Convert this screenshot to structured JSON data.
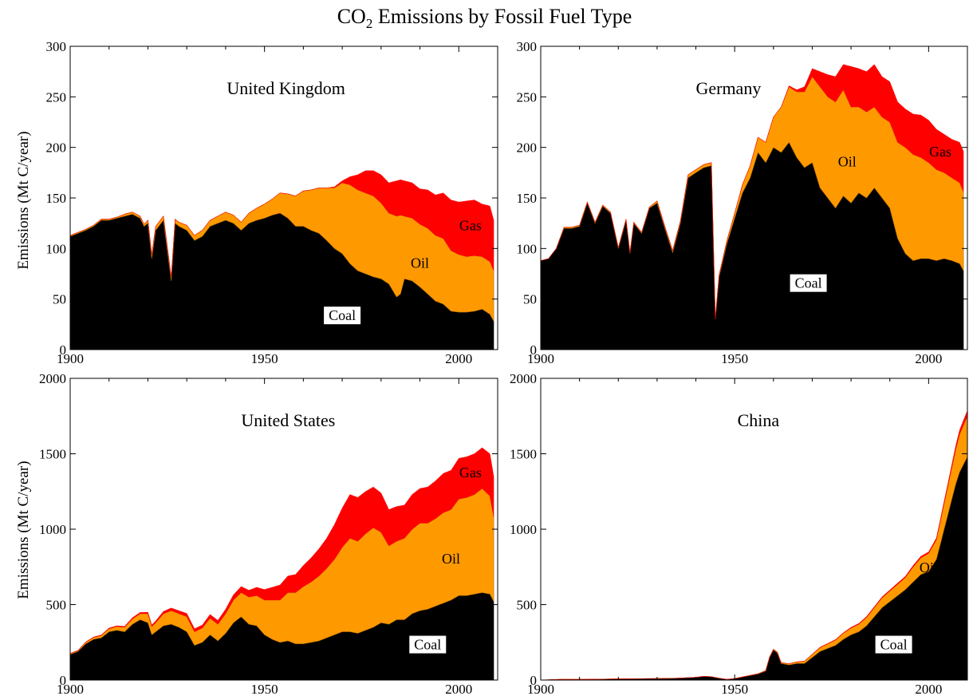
{
  "figure": {
    "title_prefix": "CO",
    "title_sub": "2",
    "title_suffix": " Emissions by Fossil Fuel Type",
    "ylabel": "Emissions (Mt C/year)"
  },
  "colors": {
    "coal": "#000000",
    "oil": "#FF9900",
    "gas": "#FF0000"
  },
  "chart_data": [
    {
      "type": "area",
      "stacked": true,
      "title": "United Kingdom",
      "ylabel": "Emissions (Mt C/year)",
      "xlim": [
        1900,
        2010
      ],
      "ylim": [
        0,
        300
      ],
      "xticks": [
        1900,
        1950,
        2000
      ],
      "yticks": [
        0,
        50,
        100,
        150,
        200,
        250,
        300
      ],
      "x": [
        1900,
        1902,
        1904,
        1906,
        1908,
        1910,
        1912,
        1914,
        1916,
        1918,
        1919,
        1920,
        1921,
        1922,
        1924,
        1926,
        1927,
        1928,
        1930,
        1932,
        1934,
        1936,
        1938,
        1940,
        1942,
        1944,
        1946,
        1948,
        1950,
        1952,
        1954,
        1956,
        1958,
        1960,
        1962,
        1964,
        1966,
        1968,
        1970,
        1972,
        1974,
        1976,
        1978,
        1980,
        1982,
        1984,
        1985,
        1986,
        1988,
        1990,
        1992,
        1994,
        1996,
        1998,
        2000,
        2002,
        2004,
        2006,
        2008,
        2009
      ],
      "series": [
        {
          "name": "Coal",
          "values": [
            112,
            115,
            118,
            122,
            128,
            128,
            130,
            132,
            134,
            130,
            122,
            125,
            90,
            118,
            128,
            68,
            125,
            122,
            118,
            108,
            112,
            122,
            125,
            128,
            125,
            118,
            125,
            128,
            130,
            133,
            135,
            130,
            122,
            122,
            118,
            115,
            108,
            100,
            95,
            85,
            78,
            75,
            72,
            70,
            65,
            52,
            55,
            70,
            68,
            62,
            55,
            48,
            45,
            38,
            37,
            37,
            38,
            40,
            35,
            28
          ]
        },
        {
          "name": "Oil",
          "values": [
            1,
            1,
            1,
            1,
            1,
            1,
            1,
            2,
            2,
            2,
            2,
            3,
            4,
            4,
            4,
            4,
            4,
            4,
            5,
            5,
            6,
            6,
            7,
            8,
            8,
            8,
            10,
            12,
            14,
            16,
            20,
            24,
            30,
            35,
            40,
            45,
            52,
            60,
            70,
            78,
            80,
            80,
            80,
            75,
            70,
            80,
            78,
            62,
            62,
            62,
            65,
            65,
            65,
            60,
            57,
            55,
            55,
            52,
            52,
            50
          ]
        },
        {
          "name": "Gas",
          "values": [
            0,
            0,
            0,
            0,
            0,
            0,
            0,
            0,
            0,
            0,
            0,
            0,
            0,
            0,
            0,
            0,
            0,
            0,
            0,
            0,
            0,
            0,
            0,
            0,
            0,
            0,
            0,
            0,
            0,
            0,
            0,
            0,
            0,
            0,
            0,
            0,
            0,
            1,
            2,
            8,
            15,
            22,
            25,
            28,
            30,
            35,
            35,
            35,
            35,
            35,
            38,
            40,
            45,
            50,
            52,
            55,
            55,
            52,
            55,
            50
          ]
        }
      ],
      "labels": [
        {
          "text": "Coal",
          "x": 1970,
          "y": 33,
          "boxed": true
        },
        {
          "text": "Oil",
          "x": 1990,
          "y": 85,
          "boxed": false
        },
        {
          "text": "Gas",
          "x": 2003,
          "y": 122,
          "boxed": false
        }
      ]
    },
    {
      "type": "area",
      "stacked": true,
      "title": "Germany",
      "xlim": [
        1900,
        2010
      ],
      "ylim": [
        0,
        300
      ],
      "xticks": [
        1900,
        1950,
        2000
      ],
      "yticks": [
        0,
        50,
        100,
        150,
        200,
        250,
        300
      ],
      "x": [
        1900,
        1902,
        1904,
        1906,
        1908,
        1910,
        1912,
        1914,
        1916,
        1918,
        1920,
        1922,
        1923,
        1924,
        1926,
        1928,
        1930,
        1932,
        1934,
        1936,
        1938,
        1940,
        1942,
        1944,
        1945,
        1946,
        1948,
        1950,
        1952,
        1954,
        1956,
        1958,
        1960,
        1962,
        1964,
        1966,
        1968,
        1970,
        1972,
        1974,
        1976,
        1978,
        1980,
        1982,
        1984,
        1986,
        1988,
        1990,
        1992,
        1994,
        1996,
        1998,
        2000,
        2002,
        2004,
        2006,
        2008,
        2009
      ],
      "series": [
        {
          "name": "Coal",
          "values": [
            88,
            90,
            100,
            120,
            120,
            122,
            145,
            125,
            142,
            135,
            100,
            128,
            95,
            125,
            115,
            140,
            145,
            120,
            96,
            125,
            170,
            175,
            180,
            182,
            30,
            72,
            105,
            130,
            155,
            170,
            195,
            185,
            200,
            195,
            205,
            190,
            180,
            185,
            160,
            150,
            140,
            152,
            145,
            155,
            150,
            160,
            150,
            140,
            110,
            95,
            88,
            90,
            90,
            88,
            90,
            88,
            85,
            78
          ]
        },
        {
          "name": "Oil",
          "values": [
            0,
            0,
            0,
            1,
            1,
            1,
            1,
            1,
            1,
            1,
            1,
            1,
            1,
            1,
            1,
            1,
            2,
            2,
            2,
            2,
            3,
            3,
            3,
            3,
            1,
            2,
            3,
            5,
            8,
            12,
            15,
            20,
            30,
            45,
            55,
            65,
            75,
            85,
            100,
            100,
            105,
            105,
            95,
            85,
            85,
            80,
            80,
            85,
            95,
            105,
            105,
            100,
            95,
            90,
            85,
            82,
            80,
            78
          ]
        },
        {
          "name": "Gas",
          "values": [
            0,
            0,
            0,
            0,
            0,
            0,
            0,
            0,
            0,
            0,
            0,
            0,
            0,
            0,
            0,
            0,
            0,
            0,
            0,
            0,
            0,
            0,
            0,
            0,
            0,
            0,
            0,
            0,
            0,
            0,
            0,
            0,
            0,
            0,
            1,
            2,
            5,
            8,
            15,
            22,
            25,
            25,
            40,
            38,
            40,
            42,
            40,
            40,
            40,
            38,
            40,
            42,
            42,
            40,
            38,
            38,
            40,
            40
          ]
        }
      ],
      "labels": [
        {
          "text": "Coal",
          "x": 1969,
          "y": 65,
          "boxed": true
        },
        {
          "text": "Oil",
          "x": 1979,
          "y": 185,
          "boxed": false
        },
        {
          "text": "Gas",
          "x": 2003,
          "y": 195,
          "boxed": false
        }
      ]
    },
    {
      "type": "area",
      "stacked": true,
      "title": "United States",
      "ylabel": "Emissions (Mt C/year)",
      "xlim": [
        1900,
        2010
      ],
      "ylim": [
        0,
        2000
      ],
      "xticks": [
        1900,
        1950,
        2000
      ],
      "yticks": [
        0,
        500,
        1000,
        1500,
        2000
      ],
      "x": [
        1900,
        1902,
        1904,
        1906,
        1908,
        1910,
        1912,
        1914,
        1916,
        1918,
        1920,
        1921,
        1922,
        1924,
        1926,
        1928,
        1930,
        1932,
        1934,
        1936,
        1938,
        1940,
        1942,
        1944,
        1946,
        1948,
        1950,
        1952,
        1954,
        1956,
        1958,
        1960,
        1962,
        1964,
        1966,
        1968,
        1970,
        1972,
        1974,
        1976,
        1978,
        1980,
        1982,
        1984,
        1986,
        1988,
        1990,
        1992,
        1994,
        1996,
        1998,
        2000,
        2002,
        2004,
        2006,
        2008,
        2009
      ],
      "series": [
        {
          "name": "Coal",
          "values": [
            170,
            190,
            240,
            270,
            280,
            320,
            330,
            320,
            370,
            400,
            380,
            300,
            320,
            360,
            370,
            350,
            320,
            230,
            250,
            300,
            260,
            310,
            380,
            420,
            370,
            360,
            300,
            270,
            250,
            260,
            240,
            240,
            250,
            260,
            280,
            300,
            320,
            320,
            310,
            330,
            350,
            380,
            370,
            400,
            400,
            440,
            460,
            470,
            490,
            510,
            530,
            560,
            560,
            570,
            580,
            570,
            520
          ]
        },
        {
          "name": "Oil",
          "values": [
            5,
            5,
            10,
            12,
            15,
            20,
            25,
            30,
            35,
            40,
            60,
            55,
            60,
            80,
            90,
            90,
            100,
            90,
            95,
            110,
            110,
            130,
            150,
            160,
            180,
            200,
            230,
            260,
            280,
            320,
            340,
            380,
            400,
            430,
            460,
            500,
            560,
            620,
            610,
            640,
            660,
            600,
            520,
            520,
            540,
            560,
            580,
            570,
            580,
            600,
            600,
            640,
            650,
            660,
            690,
            650,
            560
          ]
        },
        {
          "name": "Gas",
          "values": [
            2,
            2,
            3,
            3,
            4,
            5,
            5,
            6,
            8,
            8,
            10,
            10,
            12,
            15,
            18,
            20,
            22,
            20,
            20,
            25,
            25,
            30,
            35,
            40,
            45,
            55,
            70,
            85,
            100,
            110,
            120,
            140,
            160,
            180,
            200,
            230,
            260,
            290,
            290,
            280,
            270,
            260,
            240,
            230,
            220,
            230,
            230,
            240,
            250,
            260,
            260,
            270,
            270,
            270,
            270,
            280,
            270
          ]
        }
      ],
      "labels": [
        {
          "text": "Coal",
          "x": 1992,
          "y": 230,
          "boxed": true
        },
        {
          "text": "Oil",
          "x": 1998,
          "y": 800,
          "boxed": false
        },
        {
          "text": "Gas",
          "x": 2003,
          "y": 1370,
          "boxed": false
        }
      ]
    },
    {
      "type": "area",
      "stacked": true,
      "title": "China",
      "xlim": [
        1900,
        2010
      ],
      "ylim": [
        0,
        2000
      ],
      "xticks": [
        1900,
        1950,
        2000
      ],
      "yticks": [
        0,
        500,
        1000,
        1500,
        2000
      ],
      "x": [
        1900,
        1905,
        1910,
        1915,
        1920,
        1925,
        1930,
        1935,
        1940,
        1942,
        1944,
        1946,
        1948,
        1950,
        1952,
        1954,
        1956,
        1958,
        1959,
        1960,
        1961,
        1962,
        1964,
        1966,
        1968,
        1970,
        1972,
        1974,
        1976,
        1978,
        1980,
        1982,
        1984,
        1986,
        1988,
        1990,
        1992,
        1994,
        1996,
        1998,
        2000,
        2002,
        2003,
        2004,
        2005,
        2006,
        2007,
        2008,
        2009,
        2010
      ],
      "series": [
        {
          "name": "Coal",
          "values": [
            0,
            5,
            5,
            6,
            8,
            9,
            10,
            12,
            18,
            25,
            22,
            12,
            5,
            10,
            20,
            30,
            40,
            60,
            150,
            200,
            180,
            110,
            100,
            110,
            110,
            150,
            190,
            210,
            230,
            270,
            300,
            320,
            360,
            420,
            480,
            520,
            560,
            600,
            650,
            700,
            720,
            800,
            900,
            1000,
            1100,
            1200,
            1300,
            1380,
            1430,
            1480
          ]
        },
        {
          "name": "Oil",
          "values": [
            0,
            0,
            0,
            0,
            0,
            0,
            0,
            0,
            0,
            0,
            0,
            0,
            0,
            0,
            1,
            1,
            2,
            3,
            4,
            5,
            5,
            6,
            8,
            10,
            15,
            20,
            25,
            30,
            35,
            40,
            45,
            50,
            55,
            60,
            65,
            70,
            75,
            80,
            100,
            110,
            120,
            130,
            150,
            170,
            190,
            210,
            230,
            250,
            260,
            270
          ]
        },
        {
          "name": "Gas",
          "values": [
            0,
            0,
            0,
            0,
            0,
            0,
            0,
            0,
            0,
            0,
            0,
            0,
            0,
            0,
            0,
            0,
            0,
            0,
            0,
            0,
            0,
            0,
            0,
            1,
            1,
            2,
            3,
            3,
            4,
            4,
            5,
            5,
            6,
            6,
            7,
            7,
            8,
            8,
            9,
            10,
            10,
            12,
            13,
            15,
            17,
            20,
            24,
            28,
            32,
            36
          ]
        }
      ],
      "labels": [
        {
          "text": "Coal",
          "x": 1991,
          "y": 230,
          "boxed": true
        },
        {
          "text": "Oil",
          "x": 2000,
          "y": 740,
          "boxed": false
        }
      ]
    }
  ]
}
